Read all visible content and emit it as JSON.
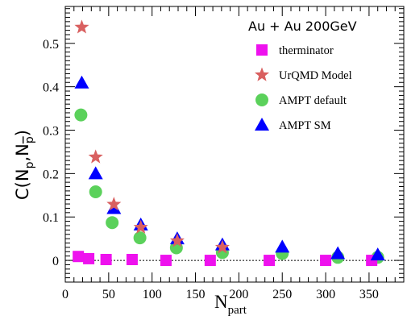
{
  "chart_data": {
    "type": "scatter",
    "title": "",
    "xlabel": {
      "main": "N",
      "sub": "part"
    },
    "ylabel": {
      "prefix": "C(N",
      "sub1": "p",
      "mid": ",N",
      "sub2": "p",
      "suffix": ")"
    },
    "legend_title": "Au + Au 200GeV",
    "legend_position": "top-right",
    "xlim": [
      0,
      390
    ],
    "ylim": [
      -0.05,
      0.585
    ],
    "xticks": [
      0,
      50,
      100,
      150,
      200,
      250,
      300,
      350
    ],
    "yticks": [
      0,
      0.1,
      0.2,
      0.3,
      0.4,
      0.5
    ],
    "reference_line_y": 0,
    "colors": {
      "therminator": "#ee11ee",
      "urqmd": "#d96060",
      "ampt_default": "#5bd15b",
      "ampt_sm": "#0000ff"
    },
    "series": [
      {
        "name": "therminator",
        "marker": "square",
        "color": "#ee11ee",
        "x": [
          15,
          27,
          47,
          77,
          116,
          167,
          235,
          300,
          353
        ],
        "y": [
          0.009,
          0.004,
          0.002,
          0.002,
          0.0,
          0.0,
          0.0,
          0.0,
          0.0
        ]
      },
      {
        "name": "UrQMD Model",
        "marker": "star",
        "color": "#d96060",
        "x": [
          19,
          35,
          56,
          87,
          129,
          181
        ],
        "y": [
          0.537,
          0.238,
          0.129,
          0.076,
          0.045,
          0.03
        ]
      },
      {
        "name": "AMPT default",
        "marker": "circle",
        "color": "#5bd15b",
        "x": [
          18,
          35,
          54,
          86,
          128,
          181,
          250,
          314,
          360
        ],
        "y": [
          0.335,
          0.158,
          0.087,
          0.052,
          0.029,
          0.018,
          0.016,
          0.007,
          0.007
        ]
      },
      {
        "name": "AMPT SM",
        "marker": "triangle",
        "color": "#0000ff",
        "x": [
          19,
          35,
          56,
          87,
          129,
          181,
          250,
          314,
          360
        ],
        "y": [
          0.409,
          0.2,
          0.12,
          0.082,
          0.05,
          0.036,
          0.031,
          0.016,
          0.013
        ]
      }
    ]
  }
}
